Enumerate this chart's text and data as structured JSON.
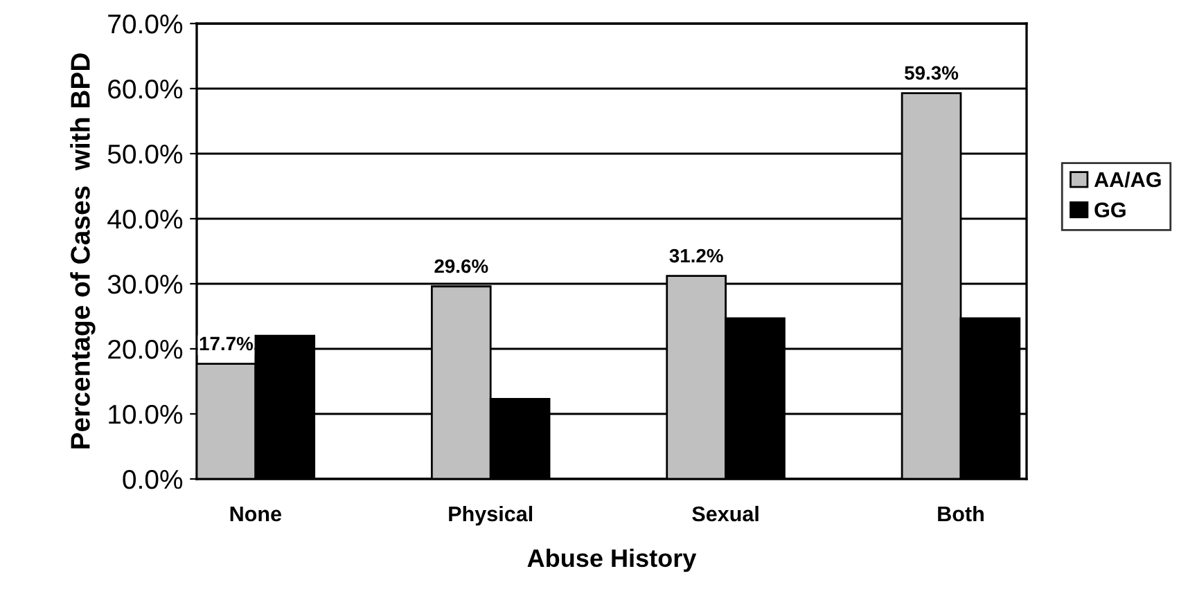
{
  "chart_data": {
    "type": "bar",
    "xlabel": "Abuse History",
    "ylabel": "Percentage of Cases  with BPD",
    "categories": [
      "None",
      "Physical",
      "Sexual",
      "Both"
    ],
    "series": [
      {
        "name": "AA/AG",
        "color": "#c0c0c0",
        "values": [
          17.7,
          29.6,
          31.2,
          59.3
        ],
        "value_labels": [
          "17.7%",
          "29.6%",
          "31.2%",
          "59.3%"
        ]
      },
      {
        "name": "GG",
        "color": "#000000",
        "values": [
          22.0,
          12.3,
          24.7,
          24.7
        ]
      }
    ],
    "ylim": [
      0,
      70
    ],
    "yticks": [
      {
        "value": 0,
        "label": "0.0%"
      },
      {
        "value": 10,
        "label": "10.0%"
      },
      {
        "value": 20,
        "label": "20.0%"
      },
      {
        "value": 30,
        "label": "30.0%"
      },
      {
        "value": 40,
        "label": "40.0%"
      },
      {
        "value": 50,
        "label": "50.0%"
      },
      {
        "value": 60,
        "label": "60.0%"
      },
      {
        "value": 70,
        "label": "70.0%"
      }
    ],
    "grid": "y",
    "legend": "right"
  }
}
